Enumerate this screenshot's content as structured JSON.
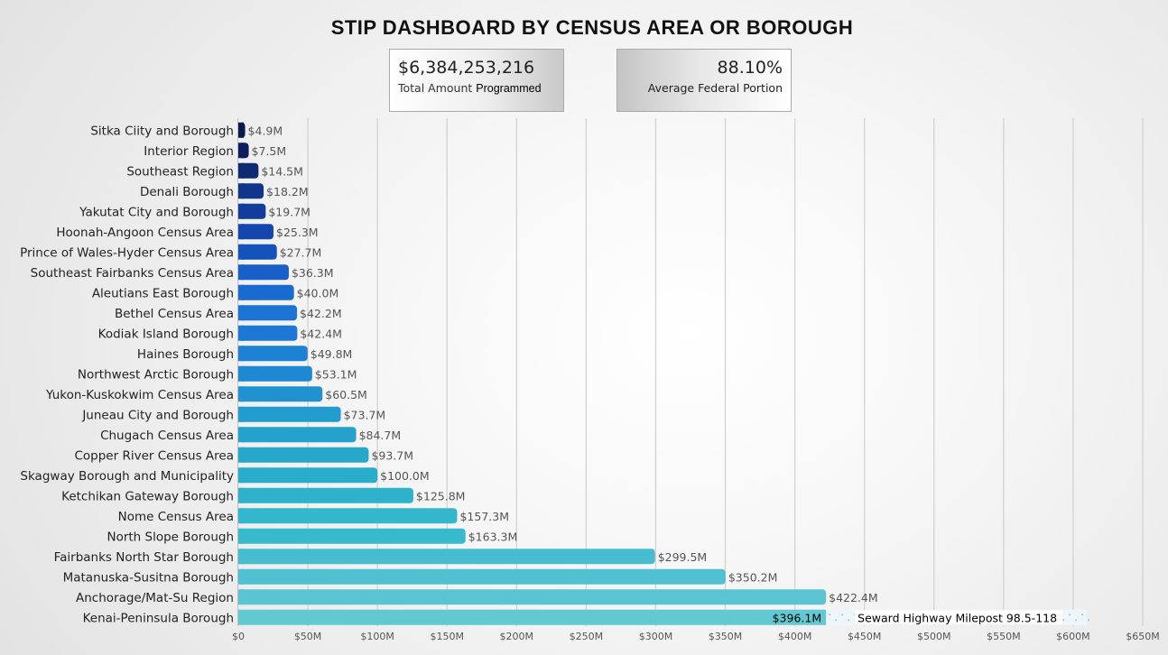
{
  "title": "STIP DASHBOARD BY CENSUS AREA OR BOROUGH",
  "kpis": {
    "total": {
      "value": "$6,384,253,216",
      "label_a": "Total Amount",
      "label_b": "Programmed"
    },
    "federal": {
      "value": "88.10%",
      "label": "Average Federal Portion"
    }
  },
  "chart_data": {
    "type": "bar",
    "orientation": "horizontal",
    "title": "STIP DASHBOARD BY CENSUS AREA OR BOROUGH",
    "xlim": [
      0,
      650
    ],
    "x_unit": "millions of dollars",
    "grid": true,
    "legend": "none",
    "x_ticks": [
      "$0",
      "$50M",
      "$100M",
      "$150M",
      "$200M",
      "$250M",
      "$300M",
      "$350M",
      "$400M",
      "$450M",
      "$500M",
      "$550M",
      "$600M",
      "$650M"
    ],
    "categories": [
      "Sitka Ciity and Borough",
      "Interior Region",
      "Southeast Region",
      "Denali Borough",
      "Yakutat City and Borough",
      "Hoonah-Angoon Census Area",
      "Prince of Wales-Hyder Census Area",
      "Southeast Fairbanks Census Area",
      "Aleutians East Borough",
      "Bethel Census Area",
      "Kodiak Island Borough",
      "Haines Borough",
      "Northwest Arctic Borough",
      "Yukon-Kuskokwim Census Area",
      "Juneau City and Borough",
      "Chugach Census Area",
      "Copper River Census Area",
      "Skagway Borough and Municipality",
      "Ketchikan Gateway Borough",
      "Nome Census Area",
      "North Slope Borough",
      "Fairbanks North Star Borough",
      "Matanuska-Susitna Borough",
      "Anchorage/Mat-Su Region",
      "Kenai-Peninsula Borough"
    ],
    "values": [
      4.9,
      7.5,
      14.5,
      18.2,
      19.7,
      25.3,
      27.7,
      36.3,
      40.0,
      42.2,
      42.4,
      49.8,
      53.1,
      60.5,
      73.7,
      84.7,
      93.7,
      100.0,
      125.8,
      157.3,
      163.3,
      299.5,
      350.2,
      422.4,
      396.1
    ],
    "value_labels": [
      "$4.9M",
      "$7.5M",
      "$14.5M",
      "$18.2M",
      "$19.7M",
      "$25.3M",
      "$27.7M",
      "$36.3M",
      "$40.0M",
      "$42.2M",
      "$42.4M",
      "$49.8M",
      "$53.1M",
      "$60.5M",
      "$73.7M",
      "$84.7M",
      "$93.7M",
      "$100.0M",
      "$125.8M",
      "$157.3M",
      "$163.3M",
      "$299.5M",
      "$350.2M",
      "$422.4M",
      "$396.1M"
    ],
    "colors": [
      "#0a1a4a",
      "#0c1f5c",
      "#0e2a70",
      "#10358a",
      "#123d9a",
      "#1447ae",
      "#1652bc",
      "#1860c8",
      "#1a6bd0",
      "#1b74d4",
      "#1c78d4",
      "#1d82d3",
      "#1e89d2",
      "#2092d0",
      "#229bce",
      "#24a2cc",
      "#27a8cb",
      "#2aadcb",
      "#2eb2cb",
      "#33b7cc",
      "#38bacd",
      "#46bdcf",
      "#50c1d0",
      "#5ac5d1",
      "#62c9d2"
    ],
    "annotation": {
      "text": "Seward Highway Milepost 98.5-118",
      "value_label": "$396.1M",
      "range_start": 422.4,
      "range_end": 610
    }
  }
}
